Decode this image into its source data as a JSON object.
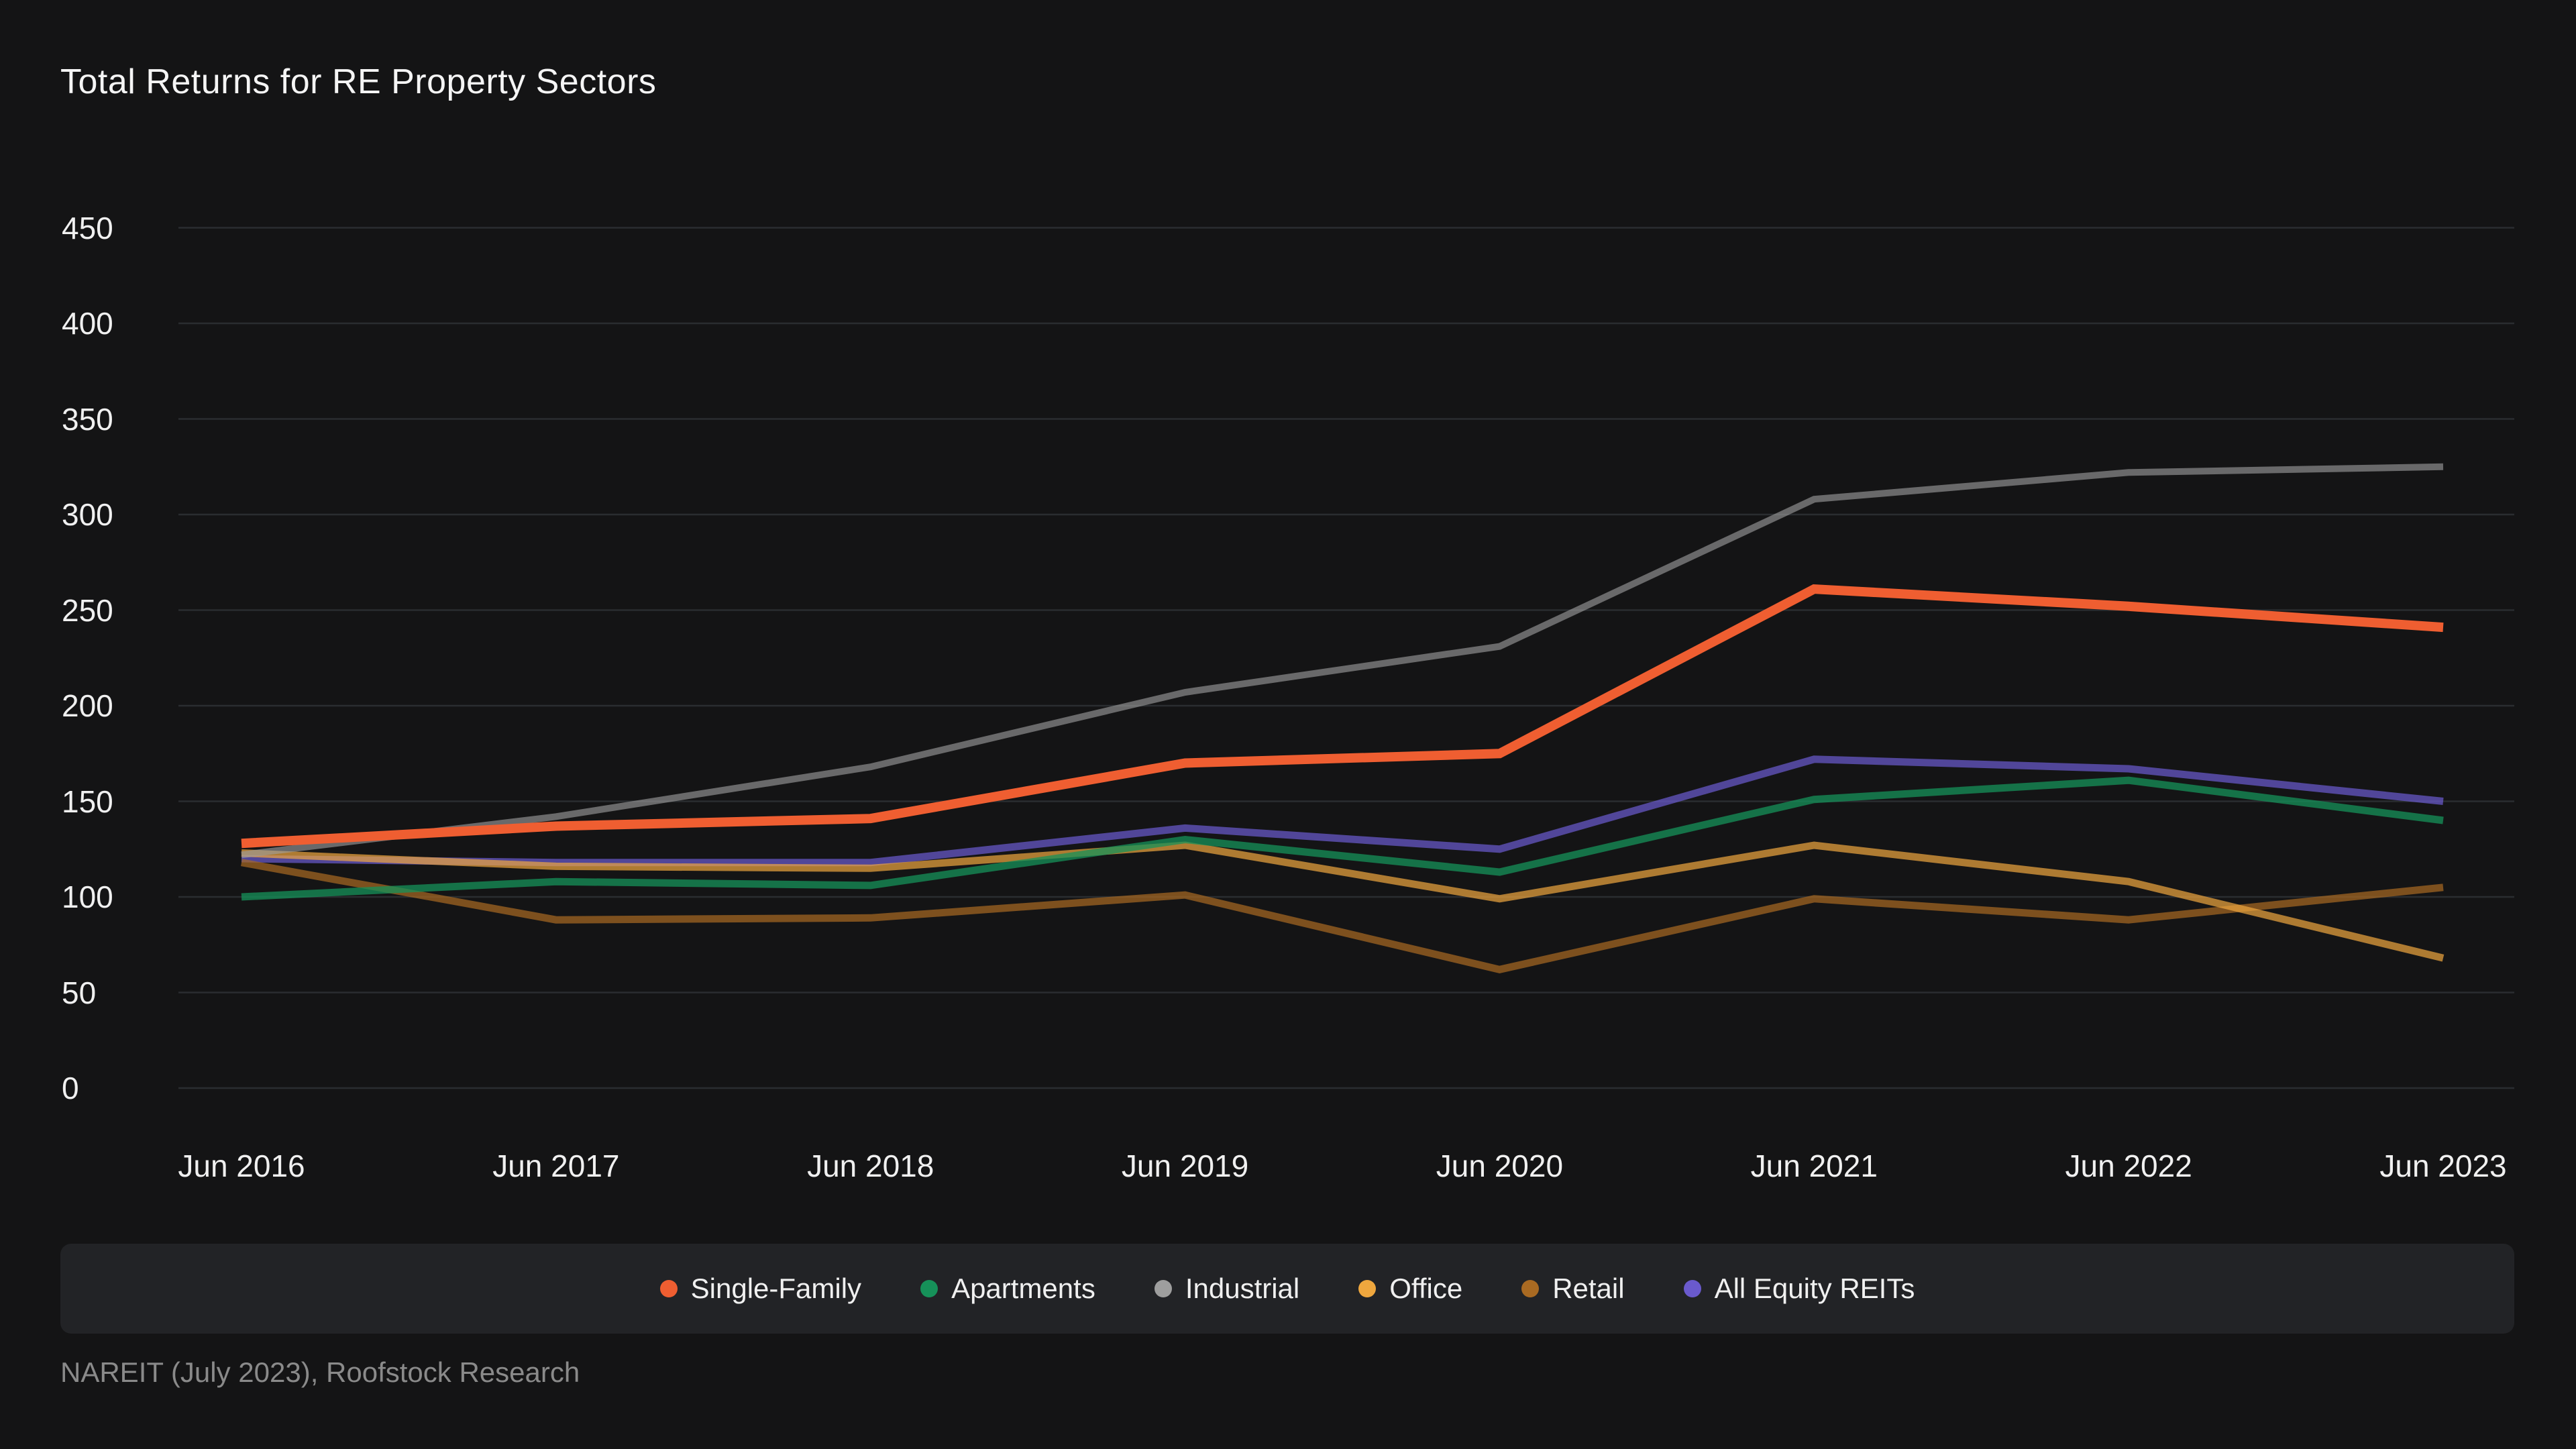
{
  "header": {
    "title": "Total Returns for RE Property Sectors"
  },
  "source_note": "NAREIT (July 2023), Roofstock Research",
  "colors": {
    "background": "#141415",
    "gridline": "#2a2d30",
    "tick_text": "#f0f0f0",
    "title_text": "#f5f5f5",
    "legend_background": "#222326",
    "legend_text": "#f0f0f0",
    "source_text": "#8a8a8a",
    "single_family": "#ef5e31",
    "apartments": "#169159",
    "industrial": "#9e9e9e",
    "office": "#efa73e",
    "retail": "#a96a22",
    "all_equity_reits": "#6a5acd"
  },
  "chart_data": {
    "type": "line",
    "title": "Total Returns for RE Property Sectors",
    "xlabel": "",
    "ylabel": "",
    "categories": [
      "Jun 2016",
      "Jun 2017",
      "Jun 2018",
      "Jun 2019",
      "Jun 2020",
      "Jun 2021",
      "Jun 2022",
      "Jun 2023"
    ],
    "series": [
      {
        "name": "Single-Family",
        "color": "#ef5e31",
        "values": [
          128,
          137,
          141,
          170,
          175,
          261,
          252,
          241
        ]
      },
      {
        "name": "Apartments",
        "color": "#169159",
        "values": [
          100,
          108,
          106,
          130,
          113,
          151,
          161,
          140
        ]
      },
      {
        "name": "Industrial",
        "color": "#9e9e9e",
        "values": [
          122,
          142,
          168,
          207,
          231,
          308,
          322,
          325
        ]
      },
      {
        "name": "Office",
        "color": "#efa73e",
        "values": [
          123,
          116,
          115,
          127,
          99,
          127,
          108,
          68
        ]
      },
      {
        "name": "Retail",
        "color": "#a96a22",
        "values": [
          118,
          88,
          89,
          101,
          62,
          99,
          88,
          105
        ]
      },
      {
        "name": "All Equity REITs",
        "color": "#6a5acd",
        "values": [
          120,
          118,
          118,
          136,
          125,
          172,
          167,
          150
        ]
      }
    ],
    "ylim": [
      0,
      450
    ],
    "ytick_step": 50,
    "yticks": [
      0,
      50,
      100,
      150,
      200,
      250,
      300,
      350,
      400,
      450
    ],
    "grid": true,
    "legend_position": "bottom"
  }
}
